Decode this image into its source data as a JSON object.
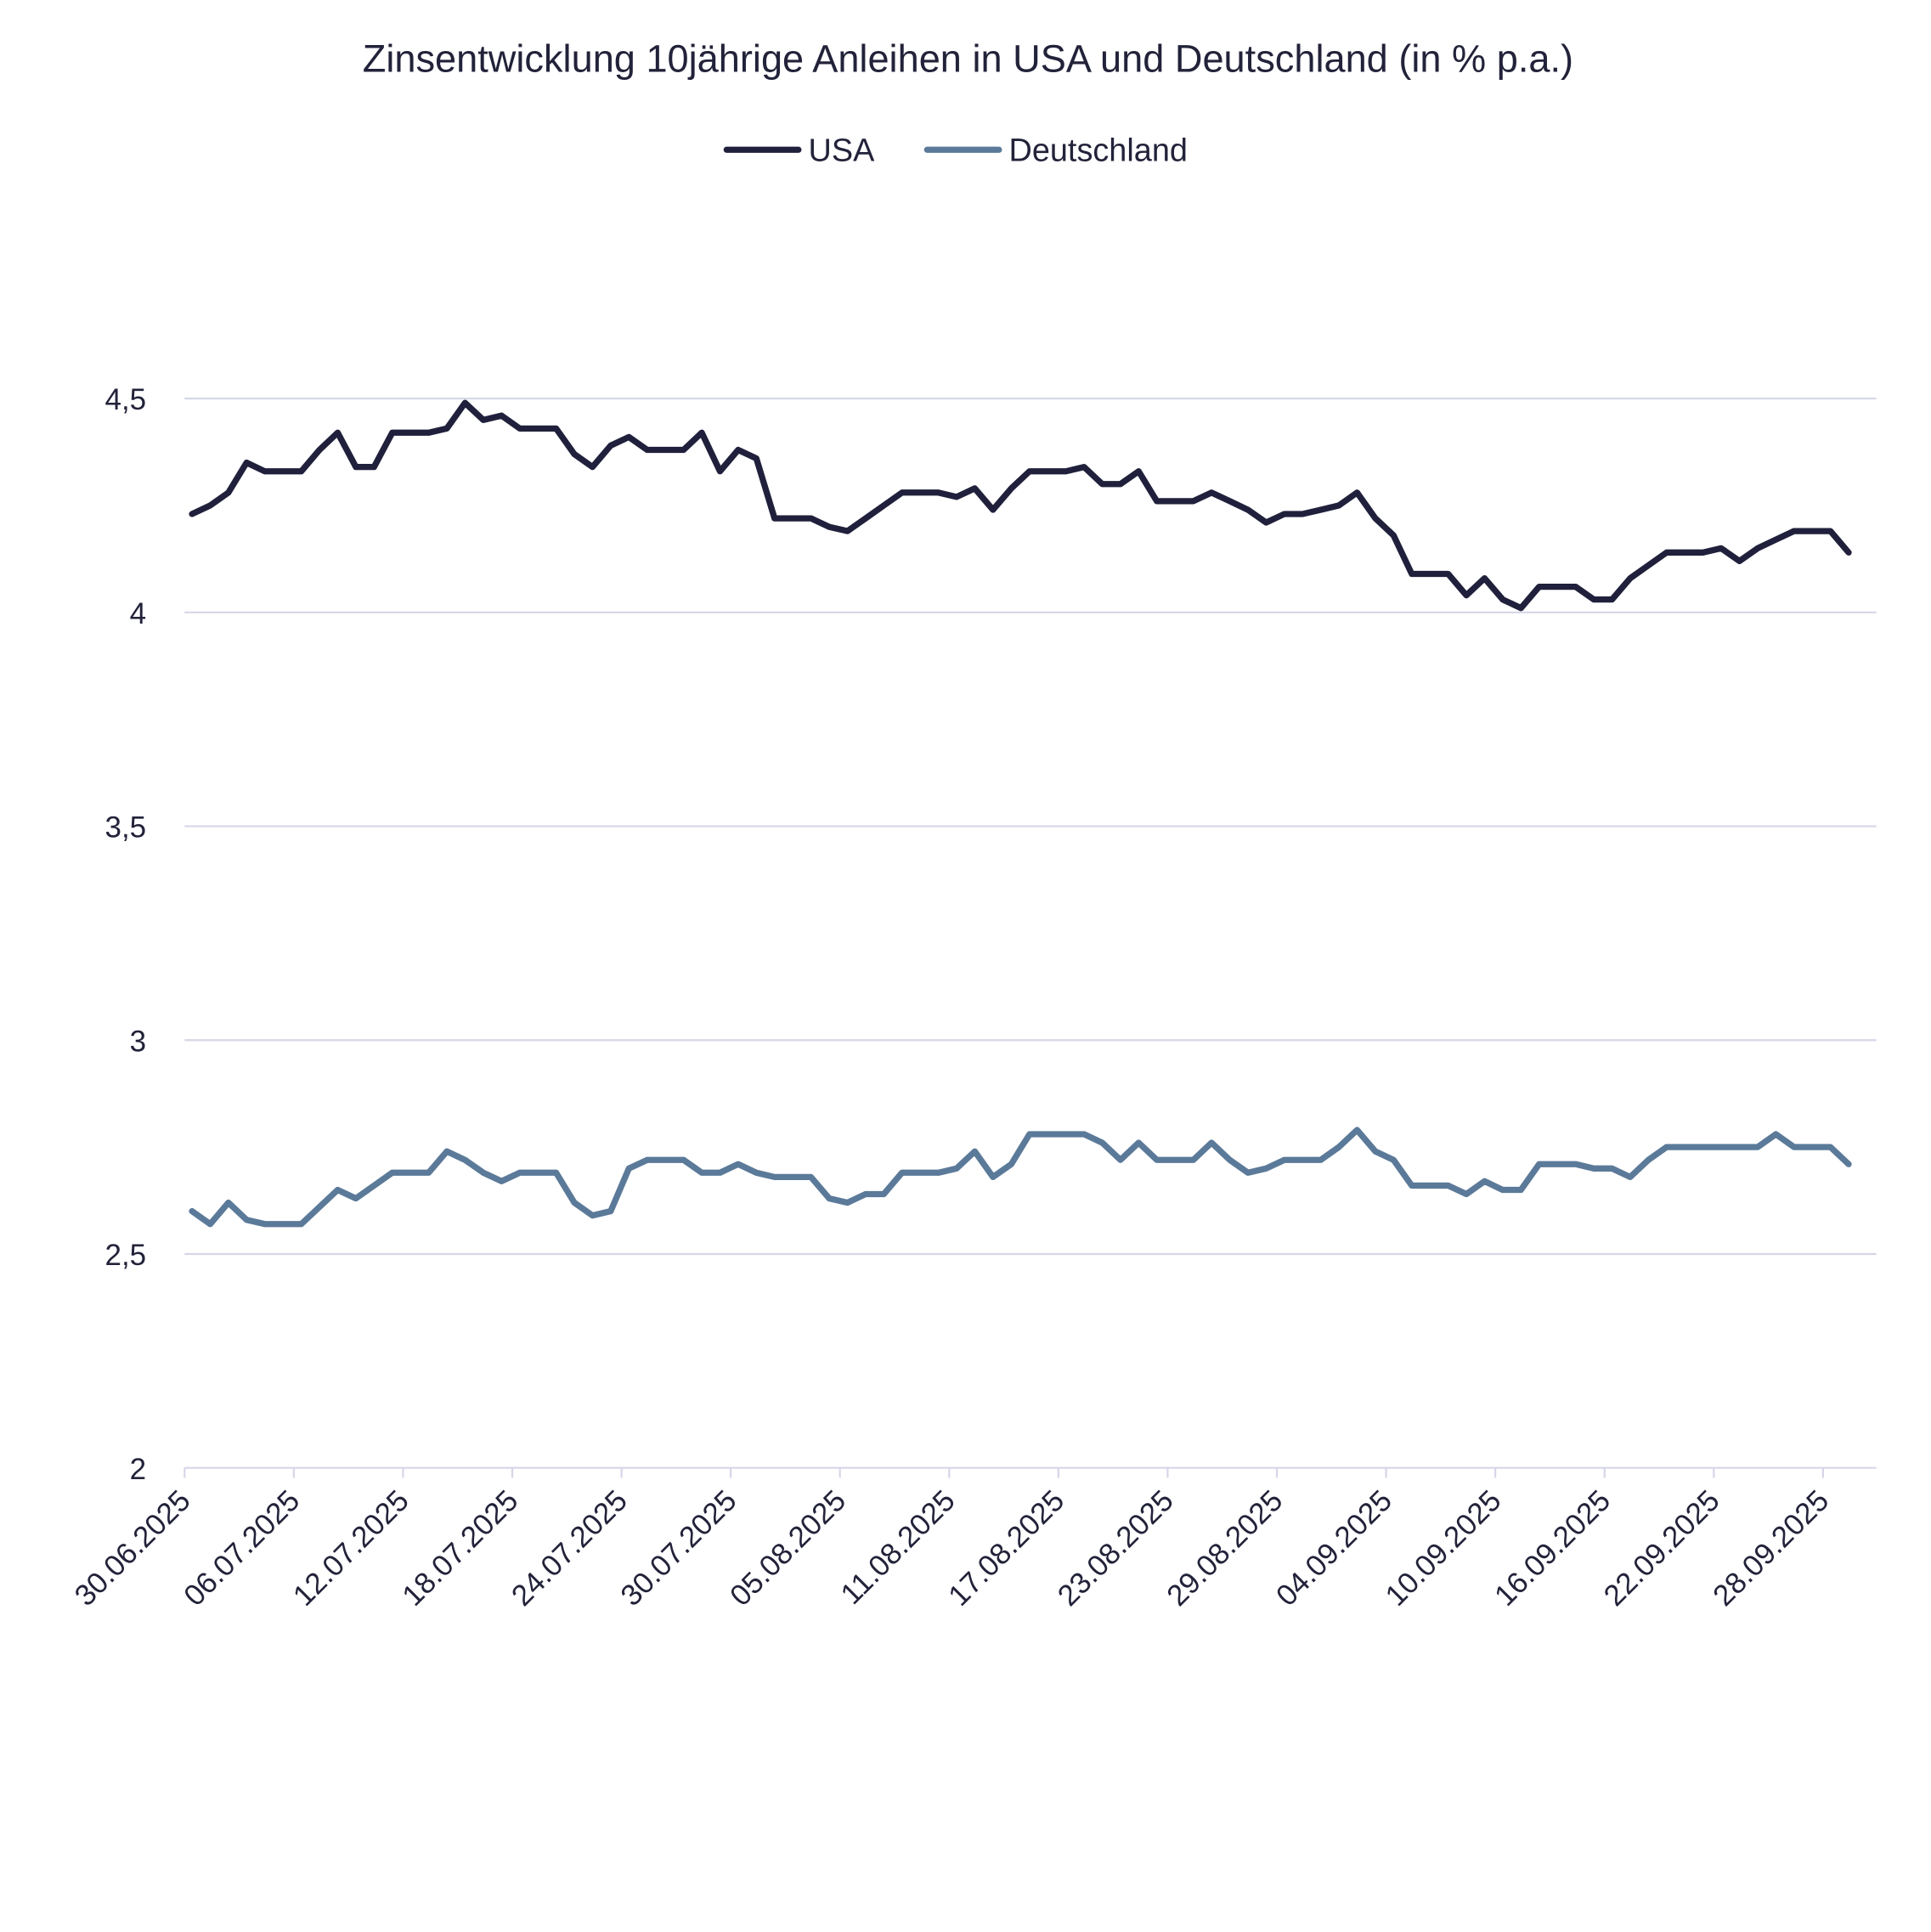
{
  "chart_data": {
    "type": "line",
    "title": "Zinsentwicklung 10jährige Anleihen in USA und Deutschland (in % p.a.)",
    "xlabel": "",
    "ylabel": "",
    "ylim": [
      2,
      4.5
    ],
    "yticks": [
      "2",
      "2,5",
      "3",
      "3,5",
      "4",
      "4,5"
    ],
    "ytick_values": [
      2,
      2.5,
      3,
      3.5,
      4,
      4.5
    ],
    "grid": "horizontal",
    "legend": "top-center",
    "xtick_labels": [
      "30.06.2025",
      "06.07.2025",
      "12.07.2025",
      "18.07.2025",
      "24.07.2025",
      "30.07.2025",
      "05.08.2025",
      "11.08.2025",
      "17.08.2025",
      "23.08.2025",
      "29.08.2025",
      "04.09.2025",
      "10.09.2025",
      "16.09.2025",
      "22.09.2025",
      "28.09.2025"
    ],
    "x": [
      "30.06.2025",
      "01.07.2025",
      "02.07.2025",
      "03.07.2025",
      "04.07.2025",
      "05.07.2025",
      "06.07.2025",
      "07.07.2025",
      "08.07.2025",
      "09.07.2025",
      "10.07.2025",
      "11.07.2025",
      "12.07.2025",
      "13.07.2025",
      "14.07.2025",
      "15.07.2025",
      "16.07.2025",
      "17.07.2025",
      "18.07.2025",
      "19.07.2025",
      "20.07.2025",
      "21.07.2025",
      "22.07.2025",
      "23.07.2025",
      "24.07.2025",
      "25.07.2025",
      "26.07.2025",
      "27.07.2025",
      "28.07.2025",
      "29.07.2025",
      "30.07.2025",
      "31.07.2025",
      "01.08.2025",
      "02.08.2025",
      "03.08.2025",
      "04.08.2025",
      "05.08.2025",
      "06.08.2025",
      "07.08.2025",
      "08.08.2025",
      "09.08.2025",
      "10.08.2025",
      "11.08.2025",
      "12.08.2025",
      "13.08.2025",
      "14.08.2025",
      "15.08.2025",
      "16.08.2025",
      "17.08.2025",
      "18.08.2025",
      "19.08.2025",
      "20.08.2025",
      "21.08.2025",
      "22.08.2025",
      "23.08.2025",
      "24.08.2025",
      "25.08.2025",
      "26.08.2025",
      "27.08.2025",
      "28.08.2025",
      "29.08.2025",
      "30.08.2025",
      "31.08.2025",
      "01.09.2025",
      "02.09.2025",
      "03.09.2025",
      "04.09.2025",
      "05.09.2025",
      "06.09.2025",
      "07.09.2025",
      "08.09.2025",
      "09.09.2025",
      "10.09.2025",
      "11.09.2025",
      "12.09.2025",
      "13.09.2025",
      "14.09.2025",
      "15.09.2025",
      "16.09.2025",
      "17.09.2025",
      "18.09.2025",
      "19.09.2025",
      "20.09.2025",
      "21.09.2025",
      "22.09.2025",
      "23.09.2025",
      "24.09.2025",
      "25.09.2025",
      "26.09.2025",
      "27.09.2025",
      "28.09.2025",
      "29.09.2025"
    ],
    "series": [
      {
        "name": "USA",
        "color": "#20203c",
        "values": [
          4.23,
          4.25,
          4.28,
          4.35,
          4.33,
          4.33,
          4.33,
          4.38,
          4.42,
          4.34,
          4.34,
          4.42,
          4.42,
          4.42,
          4.43,
          4.49,
          4.45,
          4.46,
          4.43,
          4.43,
          4.43,
          4.37,
          4.34,
          4.39,
          4.41,
          4.38,
          4.38,
          4.38,
          4.42,
          4.33,
          4.38,
          4.36,
          4.22,
          4.22,
          4.22,
          4.2,
          4.19,
          4.22,
          4.25,
          4.28,
          4.28,
          4.28,
          4.27,
          4.29,
          4.24,
          4.29,
          4.33,
          4.33,
          4.33,
          4.34,
          4.3,
          4.3,
          4.33,
          4.26,
          4.26,
          4.26,
          4.28,
          4.26,
          4.24,
          4.21,
          4.23,
          4.23,
          4.24,
          4.25,
          4.28,
          4.22,
          4.18,
          4.09,
          4.09,
          4.09,
          4.04,
          4.08,
          4.03,
          4.01,
          4.06,
          4.06,
          4.06,
          4.03,
          4.03,
          4.08,
          4.11,
          4.14,
          4.14,
          4.14,
          4.15,
          4.12,
          4.15,
          4.17,
          4.19,
          4.19,
          4.19,
          4.14
        ]
      },
      {
        "name": "Deutschland",
        "color": "#5b7a99",
        "values": [
          2.6,
          2.57,
          2.62,
          2.58,
          2.57,
          2.57,
          2.57,
          2.61,
          2.65,
          2.63,
          2.66,
          2.69,
          2.69,
          2.69,
          2.74,
          2.72,
          2.69,
          2.67,
          2.69,
          2.69,
          2.69,
          2.62,
          2.59,
          2.6,
          2.7,
          2.72,
          2.72,
          2.72,
          2.69,
          2.69,
          2.71,
          2.69,
          2.68,
          2.68,
          2.68,
          2.63,
          2.62,
          2.64,
          2.64,
          2.69,
          2.69,
          2.69,
          2.7,
          2.74,
          2.68,
          2.71,
          2.78,
          2.78,
          2.78,
          2.78,
          2.76,
          2.72,
          2.76,
          2.72,
          2.72,
          2.72,
          2.76,
          2.72,
          2.69,
          2.7,
          2.72,
          2.72,
          2.72,
          2.75,
          2.79,
          2.74,
          2.72,
          2.66,
          2.66,
          2.66,
          2.64,
          2.67,
          2.65,
          2.65,
          2.71,
          2.71,
          2.71,
          2.7,
          2.7,
          2.68,
          2.72,
          2.75,
          2.75,
          2.75,
          2.75,
          2.75,
          2.75,
          2.78,
          2.75,
          2.75,
          2.75,
          2.71
        ]
      }
    ],
    "colors": {
      "grid": "#d6d6e8",
      "text": "#22223a"
    }
  }
}
